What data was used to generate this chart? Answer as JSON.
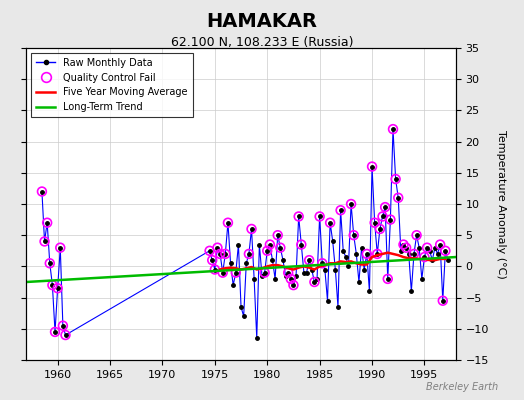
{
  "title": "HAMAKAR",
  "subtitle": "62.100 N, 108.233 E (Russia)",
  "ylabel": "Temperature Anomaly (°C)",
  "watermark": "Berkeley Earth",
  "xlim": [
    1957,
    1998
  ],
  "ylim": [
    -15,
    35
  ],
  "yticks": [
    -15,
    -10,
    -5,
    0,
    5,
    10,
    15,
    20,
    25,
    30,
    35
  ],
  "xticks": [
    1960,
    1965,
    1970,
    1975,
    1980,
    1985,
    1990,
    1995
  ],
  "bg_color": "#e8e8e8",
  "plot_bg_color": "#ffffff",
  "grid_color": "#cccccc",
  "raw_color": "#0000ff",
  "qc_color": "#ff00ff",
  "mavg_color": "#ff0000",
  "trend_color": "#00bb00",
  "raw_monthly_x": [
    1958.5,
    1958.75,
    1959.0,
    1959.25,
    1959.5,
    1959.75,
    1960.0,
    1960.25,
    1960.5,
    1960.75,
    1974.5,
    1974.75,
    1975.0,
    1975.25,
    1975.5,
    1975.75,
    1976.0,
    1976.25,
    1976.5,
    1976.75,
    1977.0,
    1977.25,
    1977.5,
    1977.75,
    1978.0,
    1978.25,
    1978.5,
    1978.75,
    1979.0,
    1979.25,
    1979.5,
    1979.75,
    1980.0,
    1980.25,
    1980.5,
    1980.75,
    1981.0,
    1981.25,
    1981.5,
    1981.75,
    1982.0,
    1982.25,
    1982.5,
    1982.75,
    1983.0,
    1983.25,
    1983.5,
    1983.75,
    1984.0,
    1984.25,
    1984.5,
    1984.75,
    1985.0,
    1985.25,
    1985.5,
    1985.75,
    1986.0,
    1986.25,
    1986.5,
    1986.75,
    1987.0,
    1987.25,
    1987.5,
    1987.75,
    1988.0,
    1988.25,
    1988.5,
    1988.75,
    1989.0,
    1989.25,
    1989.5,
    1989.75,
    1990.0,
    1990.25,
    1990.5,
    1990.75,
    1991.0,
    1991.25,
    1991.5,
    1991.75,
    1992.0,
    1992.25,
    1992.5,
    1992.75,
    1993.0,
    1993.25,
    1993.5,
    1993.75,
    1994.0,
    1994.25,
    1994.5,
    1994.75,
    1995.0,
    1995.25,
    1995.5,
    1995.75,
    1996.0,
    1996.25,
    1996.5,
    1996.75,
    1997.0,
    1997.25
  ],
  "raw_monthly_y": [
    12.0,
    4.0,
    7.0,
    0.5,
    -3.0,
    -10.5,
    -3.5,
    3.0,
    -9.5,
    -11.0,
    2.5,
    1.0,
    -0.5,
    3.0,
    2.0,
    -1.0,
    2.0,
    7.0,
    0.5,
    -3.0,
    -1.0,
    3.5,
    -6.5,
    -8.0,
    0.5,
    2.0,
    6.0,
    -2.0,
    -11.5,
    3.5,
    -1.5,
    -1.0,
    2.5,
    3.5,
    1.0,
    -2.0,
    5.0,
    3.0,
    1.0,
    -1.5,
    -1.0,
    -2.0,
    -3.0,
    -1.5,
    8.0,
    3.5,
    -1.0,
    -1.0,
    1.0,
    -0.5,
    -2.5,
    -2.0,
    8.0,
    0.5,
    -0.5,
    -5.5,
    7.0,
    4.0,
    -0.5,
    -6.5,
    9.0,
    2.5,
    1.5,
    0.0,
    10.0,
    5.0,
    2.0,
    -2.5,
    3.0,
    -0.5,
    2.0,
    -4.0,
    16.0,
    7.0,
    2.0,
    6.0,
    8.0,
    9.5,
    -2.0,
    7.5,
    22.0,
    14.0,
    11.0,
    2.5,
    3.5,
    3.0,
    2.0,
    -4.0,
    2.0,
    5.0,
    3.0,
    -2.0,
    1.5,
    3.0,
    2.5,
    1.0,
    3.0,
    2.0,
    3.5,
    -5.5,
    2.5,
    1.0
  ],
  "qc_fail_x": [
    1958.5,
    1958.75,
    1959.0,
    1959.25,
    1959.5,
    1959.75,
    1960.0,
    1960.25,
    1960.5,
    1960.75,
    1974.5,
    1974.75,
    1975.0,
    1975.25,
    1975.5,
    1975.75,
    1976.0,
    1976.25,
    1977.0,
    1978.25,
    1978.5,
    1979.75,
    1980.0,
    1980.25,
    1981.0,
    1981.25,
    1982.0,
    1982.25,
    1982.5,
    1983.0,
    1983.25,
    1984.0,
    1984.5,
    1985.0,
    1985.25,
    1986.0,
    1987.0,
    1988.0,
    1988.25,
    1989.5,
    1990.0,
    1990.25,
    1990.5,
    1990.75,
    1991.0,
    1991.25,
    1991.5,
    1991.75,
    1992.0,
    1992.25,
    1992.5,
    1993.0,
    1993.25,
    1994.0,
    1994.25,
    1995.0,
    1995.25,
    1996.5,
    1996.75,
    1997.0
  ],
  "qc_fail_y": [
    12.0,
    4.0,
    7.0,
    0.5,
    -3.0,
    -10.5,
    -3.5,
    3.0,
    -9.5,
    -11.0,
    2.5,
    1.0,
    -0.5,
    3.0,
    2.0,
    -1.0,
    2.0,
    7.0,
    -1.0,
    2.0,
    6.0,
    -1.0,
    2.5,
    3.5,
    5.0,
    3.0,
    -1.0,
    -2.0,
    -3.0,
    8.0,
    3.5,
    1.0,
    -2.5,
    8.0,
    0.5,
    7.0,
    9.0,
    10.0,
    5.0,
    2.0,
    16.0,
    7.0,
    2.0,
    6.0,
    8.0,
    9.5,
    -2.0,
    7.5,
    22.0,
    14.0,
    11.0,
    3.5,
    3.0,
    2.0,
    5.0,
    1.5,
    3.0,
    3.5,
    -5.5,
    2.5
  ],
  "trend_x": [
    1957,
    1998
  ],
  "trend_y": [
    -2.5,
    1.5
  ],
  "mavg_x": [
    1975.5,
    1976.0,
    1976.5,
    1977.0,
    1977.5,
    1978.0,
    1978.5,
    1979.0,
    1979.5,
    1980.0,
    1980.5,
    1981.0,
    1981.5,
    1982.0,
    1982.5,
    1983.0,
    1983.5,
    1984.0,
    1984.5,
    1985.0,
    1985.5,
    1986.0,
    1986.5,
    1987.0,
    1987.5,
    1988.0,
    1988.5,
    1989.0,
    1989.5,
    1990.0,
    1990.5,
    1991.0,
    1991.5,
    1992.0,
    1992.5,
    1993.0,
    1993.5,
    1994.0,
    1994.5,
    1995.0,
    1995.5,
    1996.0,
    1996.5,
    1997.0
  ],
  "mavg_y": [
    -0.5,
    -0.3,
    -0.2,
    -0.3,
    -0.5,
    -0.3,
    -0.1,
    -0.5,
    -0.3,
    0.0,
    0.2,
    0.2,
    0.0,
    -0.3,
    -0.5,
    -0.2,
    0.0,
    -0.2,
    -0.5,
    0.0,
    0.2,
    0.5,
    0.5,
    0.8,
    0.7,
    0.8,
    0.5,
    0.3,
    0.3,
    1.5,
    1.8,
    2.0,
    2.2,
    2.0,
    1.8,
    1.5,
    1.3,
    1.3,
    1.2,
    1.2,
    1.0,
    1.0,
    1.2,
    1.2
  ]
}
